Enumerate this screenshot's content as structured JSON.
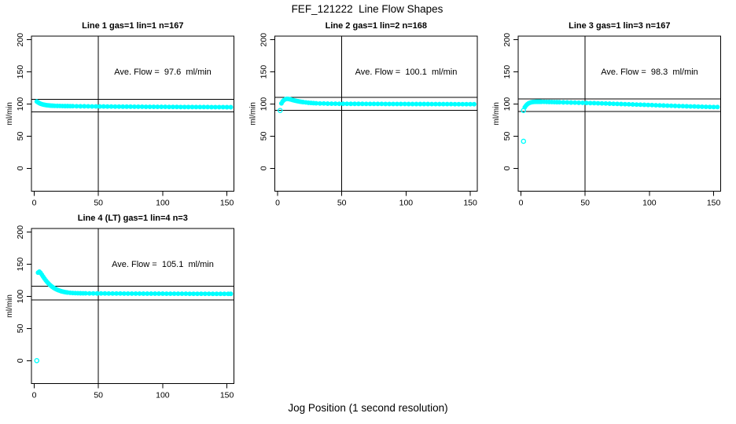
{
  "figure": {
    "title": "FEF_121222  Line Flow Shapes",
    "x_axis_title": "Jog Position (1 second resolution)"
  },
  "chart_data": {
    "type": "scatter",
    "title": "FEF_121222  Line Flow Shapes",
    "xlabel": "Jog Position (1 second resolution)",
    "ylabel": "ml/min",
    "x_ticks": [
      0,
      50,
      100,
      150
    ],
    "y_ticks": [
      0,
      50,
      100,
      150,
      200
    ],
    "xlim": [
      -2,
      155
    ],
    "ylim": [
      -35,
      206
    ],
    "grid": false,
    "legend": "none",
    "marker_color": "#00ffff",
    "line_color": "#000000",
    "vline_x": 50,
    "hline_rule": "average flow plus/minus 10 percent",
    "panels": [
      {
        "title": "Line 1 gas=1 lin=1 n=167",
        "annotation": "Ave. Flow =  97.6  ml/min",
        "ave_flow": 97.6,
        "gas": 1,
        "lin": 1,
        "n": 167,
        "hlines": [
          107.4,
          87.8
        ],
        "isolated": [],
        "points": [
          [
            2,
            104
          ],
          [
            3,
            102.6
          ],
          [
            4,
            101.4
          ],
          [
            5,
            100.4
          ],
          [
            6,
            99.8
          ],
          [
            7,
            99.2
          ],
          [
            8,
            98.8
          ],
          [
            9,
            98.4
          ],
          [
            10,
            98.1
          ],
          [
            11,
            97.9
          ],
          [
            12,
            97.7
          ],
          [
            13,
            97.5
          ],
          [
            14,
            97.4
          ],
          [
            15,
            97.3
          ],
          [
            16,
            97.2
          ],
          [
            18,
            97.1
          ],
          [
            20,
            97.0
          ],
          [
            22,
            96.9
          ],
          [
            24,
            96.8
          ],
          [
            26,
            96.8
          ],
          [
            28,
            96.7
          ],
          [
            30,
            96.7
          ],
          [
            33,
            96.6
          ],
          [
            36,
            96.5
          ],
          [
            39,
            96.5
          ],
          [
            42,
            96.4
          ],
          [
            45,
            96.3
          ],
          [
            48,
            96.3
          ],
          [
            51,
            96.2
          ],
          [
            54,
            96.2
          ],
          [
            57,
            96.1
          ],
          [
            60,
            96.1
          ],
          [
            63,
            96.0
          ],
          [
            66,
            96.0
          ],
          [
            69,
            95.9
          ],
          [
            72,
            95.9
          ],
          [
            75,
            95.9
          ],
          [
            78,
            95.8
          ],
          [
            81,
            95.8
          ],
          [
            84,
            95.8
          ],
          [
            87,
            95.7
          ],
          [
            90,
            95.7
          ],
          [
            93,
            95.7
          ],
          [
            96,
            95.6
          ],
          [
            99,
            95.6
          ],
          [
            102,
            95.6
          ],
          [
            105,
            95.5
          ],
          [
            108,
            95.5
          ],
          [
            111,
            95.5
          ],
          [
            114,
            95.4
          ],
          [
            117,
            95.4
          ],
          [
            120,
            95.4
          ],
          [
            123,
            95.4
          ],
          [
            126,
            95.3
          ],
          [
            129,
            95.3
          ],
          [
            132,
            95.3
          ],
          [
            135,
            95.3
          ],
          [
            138,
            95.2
          ],
          [
            141,
            95.2
          ],
          [
            144,
            95.2
          ],
          [
            147,
            95.2
          ],
          [
            150,
            95.1
          ],
          [
            153,
            95.1
          ]
        ]
      },
      {
        "title": "Line 2 gas=1 lin=2 n=168",
        "annotation": "Ave. Flow =  100.1  ml/min",
        "ave_flow": 100.1,
        "gas": 1,
        "lin": 2,
        "n": 168,
        "hlines": [
          110.1,
          90.1
        ],
        "isolated": [
          [
            2,
            90
          ]
        ],
        "points": [
          [
            3,
            101
          ],
          [
            4,
            104.3
          ],
          [
            5,
            106.2
          ],
          [
            6,
            107.4
          ],
          [
            7,
            108
          ],
          [
            8,
            108
          ],
          [
            9,
            107.7
          ],
          [
            10,
            107.2
          ],
          [
            11,
            106.7
          ],
          [
            12,
            106.1
          ],
          [
            13,
            105.6
          ],
          [
            14,
            105.1
          ],
          [
            15,
            104.7
          ],
          [
            16,
            104.3
          ],
          [
            17,
            103.9
          ],
          [
            18,
            103.6
          ],
          [
            19,
            103.3
          ],
          [
            20,
            103
          ],
          [
            22,
            102.5
          ],
          [
            24,
            102
          ],
          [
            26,
            101.7
          ],
          [
            28,
            101.4
          ],
          [
            30,
            101.2
          ],
          [
            33,
            100.9
          ],
          [
            36,
            100.8
          ],
          [
            39,
            100.6
          ],
          [
            42,
            100.5
          ],
          [
            45,
            100.5
          ],
          [
            48,
            100.4
          ],
          [
            51,
            100.4
          ],
          [
            54,
            100.4
          ],
          [
            57,
            100.3
          ],
          [
            60,
            100.3
          ],
          [
            63,
            100.3
          ],
          [
            66,
            100.3
          ],
          [
            69,
            100.2
          ],
          [
            72,
            100.2
          ],
          [
            75,
            100.2
          ],
          [
            78,
            100.2
          ],
          [
            81,
            100.2
          ],
          [
            84,
            100.1
          ],
          [
            87,
            100.1
          ],
          [
            90,
            100.1
          ],
          [
            93,
            100.1
          ],
          [
            96,
            100.1
          ],
          [
            99,
            100.1
          ],
          [
            102,
            100.0
          ],
          [
            105,
            100.0
          ],
          [
            108,
            100.0
          ],
          [
            111,
            100.0
          ],
          [
            114,
            100.0
          ],
          [
            117,
            100.0
          ],
          [
            120,
            99.9
          ],
          [
            123,
            99.9
          ],
          [
            126,
            99.9
          ],
          [
            129,
            99.9
          ],
          [
            132,
            99.9
          ],
          [
            135,
            99.9
          ],
          [
            138,
            99.8
          ],
          [
            141,
            99.8
          ],
          [
            144,
            99.8
          ],
          [
            147,
            99.8
          ],
          [
            150,
            99.8
          ],
          [
            153,
            99.8
          ]
        ]
      },
      {
        "title": "Line 3 gas=1 lin=3 n=167",
        "annotation": "Ave. Flow =  98.3  ml/min",
        "ave_flow": 98.3,
        "gas": 1,
        "lin": 3,
        "n": 167,
        "hlines": [
          108.1,
          88.5
        ],
        "isolated": [
          [
            2,
            42
          ],
          [
            2,
            90
          ]
        ],
        "points": [
          [
            3,
            95
          ],
          [
            4,
            97.8
          ],
          [
            5,
            99.8
          ],
          [
            6,
            101.2
          ],
          [
            7,
            102.1
          ],
          [
            8,
            102.7
          ],
          [
            9,
            103.1
          ],
          [
            10,
            103.3
          ],
          [
            11,
            103.4
          ],
          [
            12,
            103.5
          ],
          [
            13,
            103.5
          ],
          [
            14,
            103.5
          ],
          [
            15,
            103.5
          ],
          [
            16,
            103.4
          ],
          [
            18,
            103.4
          ],
          [
            20,
            103.3
          ],
          [
            22,
            103.2
          ],
          [
            24,
            103.1
          ],
          [
            26,
            103.0
          ],
          [
            28,
            102.9
          ],
          [
            30,
            102.8
          ],
          [
            33,
            102.6
          ],
          [
            36,
            102.5
          ],
          [
            39,
            102.3
          ],
          [
            42,
            102.2
          ],
          [
            45,
            102.0
          ],
          [
            48,
            101.9
          ],
          [
            51,
            101.7
          ],
          [
            54,
            101.5
          ],
          [
            57,
            101.4
          ],
          [
            60,
            101.2
          ],
          [
            63,
            101.0
          ],
          [
            66,
            100.8
          ],
          [
            69,
            100.6
          ],
          [
            72,
            100.4
          ],
          [
            75,
            100.2
          ],
          [
            78,
            100.0
          ],
          [
            81,
            99.8
          ],
          [
            84,
            99.6
          ],
          [
            87,
            99.4
          ],
          [
            90,
            99.2
          ],
          [
            93,
            99.0
          ],
          [
            96,
            98.8
          ],
          [
            99,
            98.6
          ],
          [
            102,
            98.4
          ],
          [
            105,
            98.1
          ],
          [
            108,
            97.9
          ],
          [
            111,
            97.7
          ],
          [
            114,
            97.5
          ],
          [
            117,
            97.3
          ],
          [
            120,
            97.1
          ],
          [
            123,
            96.9
          ],
          [
            126,
            96.7
          ],
          [
            129,
            96.5
          ],
          [
            132,
            96.3
          ],
          [
            135,
            96.2
          ],
          [
            138,
            96.0
          ],
          [
            141,
            95.8
          ],
          [
            144,
            95.6
          ],
          [
            147,
            95.5
          ],
          [
            150,
            95.3
          ],
          [
            153,
            95.3
          ]
        ]
      },
      {
        "title": "Line 4 (LT) gas=1 lin=4 n=3",
        "annotation": "Ave. Flow =  105.1  ml/min",
        "ave_flow": 105.1,
        "gas": 1,
        "lin": 4,
        "n": 3,
        "hlines": [
          115.6,
          94.6
        ],
        "isolated": [
          [
            2,
            0
          ]
        ],
        "points": [
          [
            3,
            137
          ],
          [
            4,
            138.5
          ],
          [
            5,
            136.6
          ],
          [
            6,
            133.6
          ],
          [
            7,
            130.6
          ],
          [
            8,
            127.7
          ],
          [
            9,
            125
          ],
          [
            10,
            122.6
          ],
          [
            11,
            120.4
          ],
          [
            12,
            118.4
          ],
          [
            13,
            116.6
          ],
          [
            14,
            115
          ],
          [
            15,
            113.6
          ],
          [
            16,
            112.4
          ],
          [
            17,
            111.3
          ],
          [
            18,
            110.3
          ],
          [
            19,
            109.5
          ],
          [
            20,
            108.8
          ],
          [
            21,
            108.1
          ],
          [
            22,
            107.6
          ],
          [
            23,
            107.1
          ],
          [
            24,
            106.7
          ],
          [
            25,
            106.3
          ],
          [
            26,
            106
          ],
          [
            28,
            105.6
          ],
          [
            30,
            105.3
          ],
          [
            32,
            105.1
          ],
          [
            34,
            105
          ],
          [
            36,
            104.9
          ],
          [
            38,
            104.8
          ],
          [
            40,
            104.8
          ],
          [
            43,
            104.7
          ],
          [
            46,
            104.7
          ],
          [
            49,
            104.6
          ],
          [
            52,
            104.6
          ],
          [
            55,
            104.6
          ],
          [
            58,
            104.5
          ],
          [
            61,
            104.5
          ],
          [
            64,
            104.5
          ],
          [
            67,
            104.5
          ],
          [
            70,
            104.4
          ],
          [
            73,
            104.4
          ],
          [
            76,
            104.4
          ],
          [
            79,
            104.4
          ],
          [
            82,
            104.4
          ],
          [
            85,
            104.3
          ],
          [
            88,
            104.3
          ],
          [
            91,
            104.3
          ],
          [
            94,
            104.3
          ],
          [
            97,
            104.3
          ],
          [
            100,
            104.3
          ],
          [
            103,
            104.2
          ],
          [
            106,
            104.2
          ],
          [
            109,
            104.2
          ],
          [
            112,
            104.2
          ],
          [
            115,
            104.2
          ],
          [
            118,
            104.2
          ],
          [
            121,
            104.1
          ],
          [
            124,
            104.1
          ],
          [
            127,
            104.1
          ],
          [
            130,
            104.1
          ],
          [
            133,
            104.1
          ],
          [
            136,
            104.1
          ],
          [
            139,
            104.0
          ],
          [
            142,
            104.0
          ],
          [
            145,
            104.0
          ],
          [
            148,
            104.0
          ],
          [
            151,
            104.0
          ],
          [
            153,
            104.0
          ]
        ]
      }
    ]
  }
}
